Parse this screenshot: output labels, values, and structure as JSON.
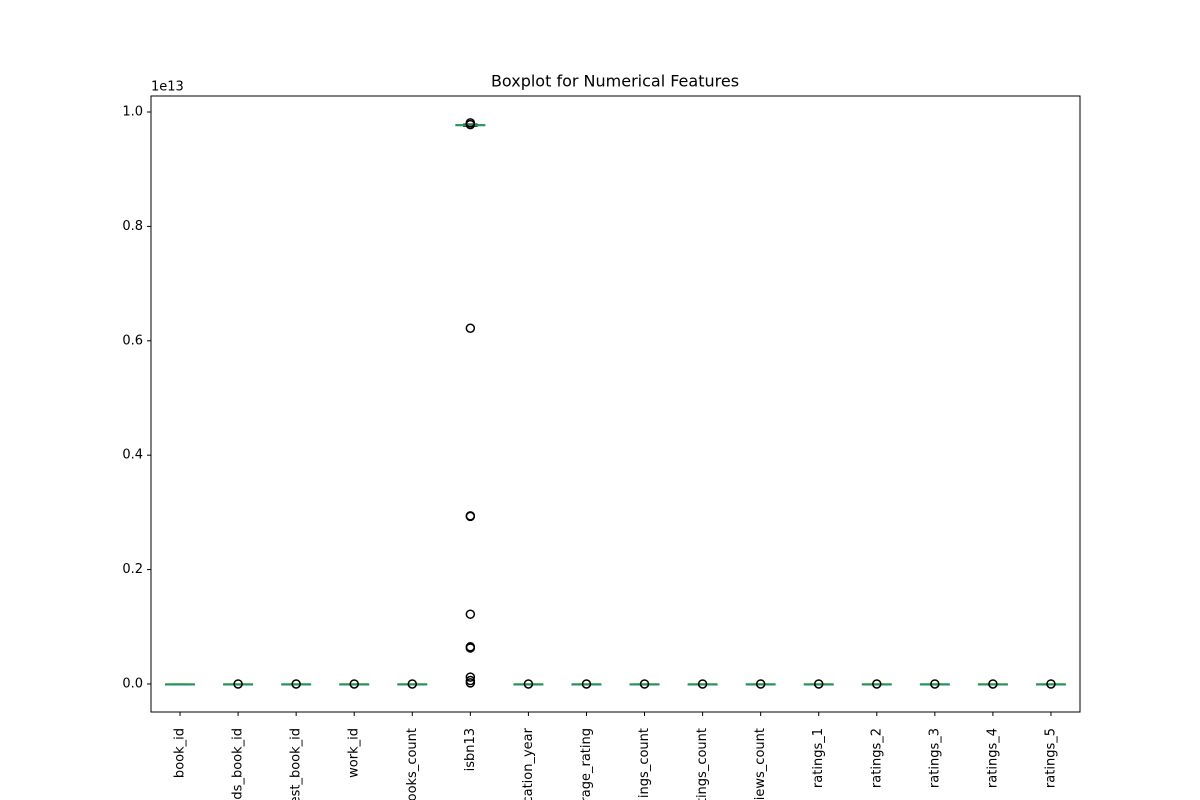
{
  "chart_data": {
    "type": "boxplot",
    "title": "Boxplot for Numerical Features",
    "y_offset_label": "1e13",
    "categories": [
      "book_id",
      "ds_book_id",
      "est_book_id",
      "work_id",
      "ooks_count",
      "isbn13",
      "cation_year",
      "rage_rating",
      "ings_count",
      "tings_count",
      "iews_count",
      "ratings_1",
      "ratings_2",
      "ratings_3",
      "ratings_4",
      "ratings_5"
    ],
    "boxes": [
      {
        "whislo": 0,
        "q1": 0,
        "median": 0,
        "q3": 0,
        "whishi": 0,
        "fliers": []
      },
      {
        "whislo": 0,
        "q1": 0,
        "median": 0,
        "q3": 0,
        "whishi": 0,
        "fliers": [
          0
        ]
      },
      {
        "whislo": 0,
        "q1": 0,
        "median": 0,
        "q3": 0,
        "whishi": 0,
        "fliers": [
          0
        ]
      },
      {
        "whislo": 0,
        "q1": 0,
        "median": 0,
        "q3": 0,
        "whishi": 0,
        "fliers": [
          0
        ]
      },
      {
        "whislo": 0,
        "q1": 0,
        "median": 0,
        "q3": 0,
        "whishi": 0,
        "fliers": [
          0
        ]
      },
      {
        "whislo": 0.975,
        "q1": 0.976,
        "median": 0.977,
        "q3": 0.978,
        "whishi": 0.979,
        "fliers": [
          0.981,
          0.978,
          0.622,
          0.294,
          0.293,
          0.122,
          0.065,
          0.063,
          0.012,
          0.006,
          0.002
        ]
      },
      {
        "whislo": 0,
        "q1": 0,
        "median": 0,
        "q3": 0,
        "whishi": 0,
        "fliers": [
          0
        ]
      },
      {
        "whislo": 0,
        "q1": 0,
        "median": 0,
        "q3": 0,
        "whishi": 0,
        "fliers": [
          0
        ]
      },
      {
        "whislo": 0,
        "q1": 0,
        "median": 0,
        "q3": 0,
        "whishi": 0,
        "fliers": [
          0
        ]
      },
      {
        "whislo": 0,
        "q1": 0,
        "median": 0,
        "q3": 0,
        "whishi": 0,
        "fliers": [
          0
        ]
      },
      {
        "whislo": 0,
        "q1": 0,
        "median": 0,
        "q3": 0,
        "whishi": 0,
        "fliers": [
          0
        ]
      },
      {
        "whislo": 0,
        "q1": 0,
        "median": 0,
        "q3": 0,
        "whishi": 0,
        "fliers": [
          0
        ]
      },
      {
        "whislo": 0,
        "q1": 0,
        "median": 0,
        "q3": 0,
        "whishi": 0,
        "fliers": [
          0
        ]
      },
      {
        "whislo": 0,
        "q1": 0,
        "median": 0,
        "q3": 0,
        "whishi": 0,
        "fliers": [
          0
        ]
      },
      {
        "whislo": 0,
        "q1": 0,
        "median": 0,
        "q3": 0,
        "whishi": 0,
        "fliers": [
          0
        ]
      },
      {
        "whislo": 0,
        "q1": 0,
        "median": 0,
        "q3": 0,
        "whishi": 0,
        "fliers": [
          0
        ]
      }
    ],
    "box_color": "#1f77b4",
    "median_color": "#2ca02c",
    "flier_color": "#000000",
    "ylim": [
      -0.049,
      1.028
    ],
    "yticks": [
      {
        "value": 0,
        "label": "0.0"
      },
      {
        "value": 0.2,
        "label": "0.2"
      },
      {
        "value": 0.4,
        "label": "0.4"
      },
      {
        "value": 0.6,
        "label": "0.6"
      },
      {
        "value": 0.8,
        "label": "0.8"
      },
      {
        "value": 1.0,
        "label": "1.0"
      }
    ],
    "grid": false
  }
}
